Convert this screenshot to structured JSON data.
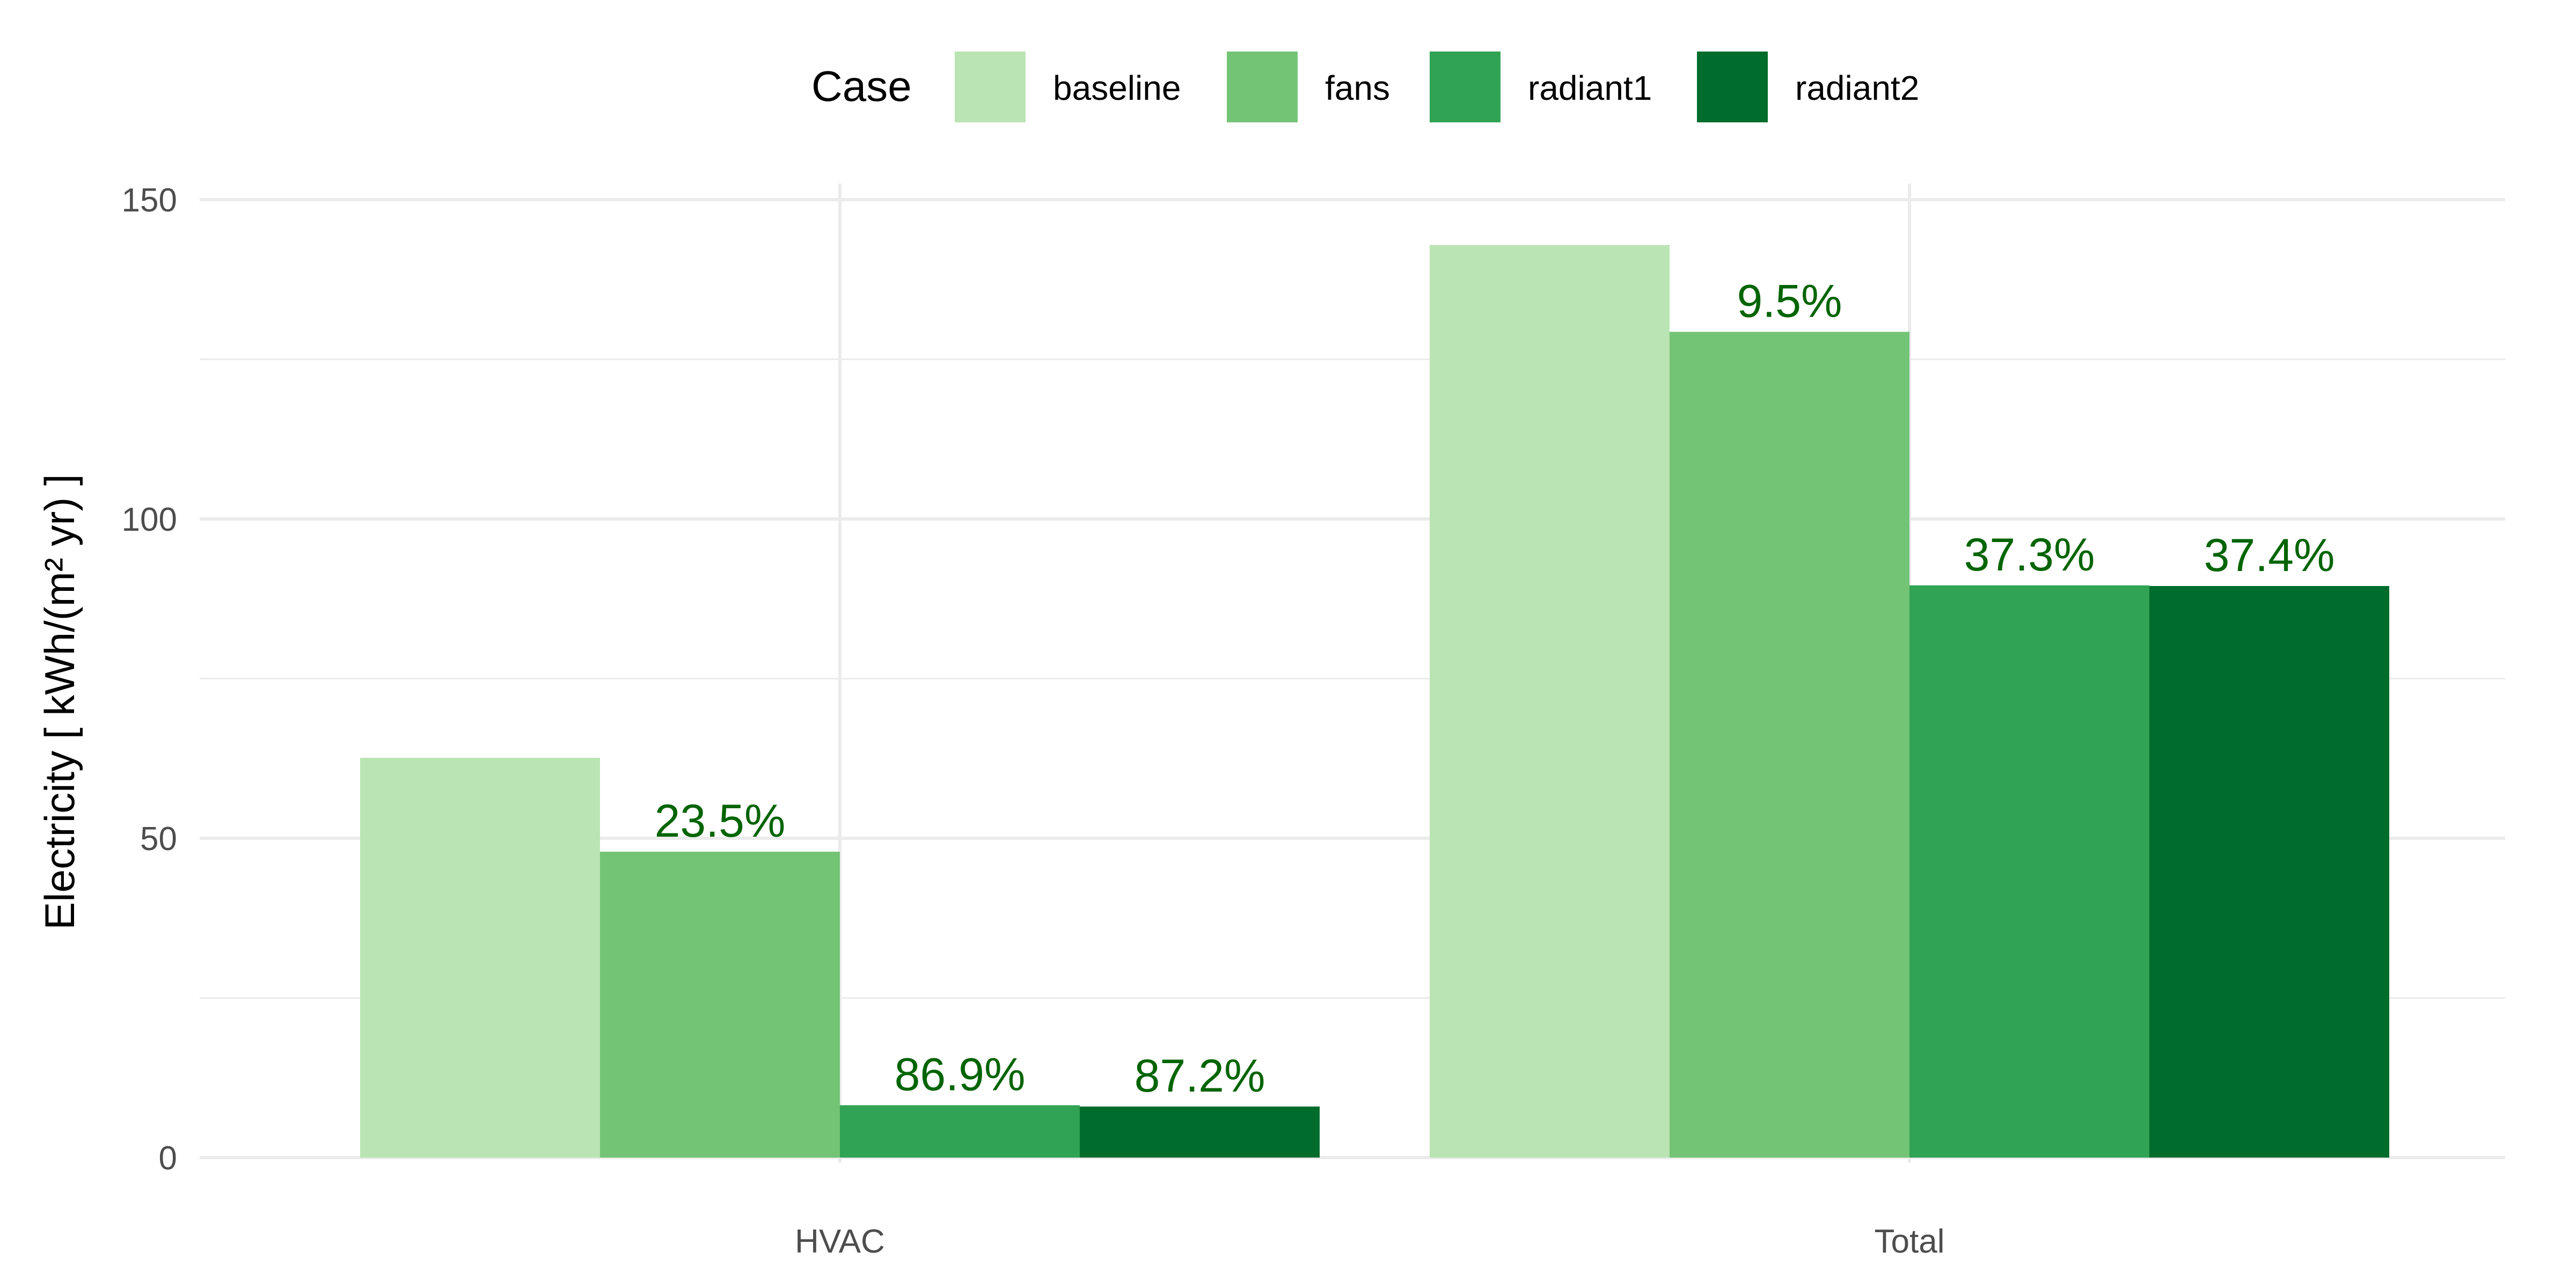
{
  "chart_data": {
    "type": "bar",
    "categories": [
      "HVAC",
      "Total"
    ],
    "series": [
      {
        "name": "baseline",
        "values": [
          62.6,
          142.9
        ],
        "labels": [
          "",
          ""
        ]
      },
      {
        "name": "fans",
        "values": [
          47.9,
          129.3
        ],
        "labels": [
          "23.5%",
          "9.5%"
        ]
      },
      {
        "name": "radiant1",
        "values": [
          8.2,
          89.6
        ],
        "labels": [
          "86.9%",
          "37.3%"
        ]
      },
      {
        "name": "radiant2",
        "values": [
          8.0,
          89.5
        ],
        "labels": [
          "87.2%",
          "37.4%"
        ]
      }
    ],
    "title": "",
    "xlabel": "",
    "ylabel": "Electricity [ kWh/(m² yr) ]",
    "ylim": [
      0,
      150
    ],
    "yticks": [
      0,
      50,
      100,
      150
    ],
    "legend": {
      "title": "Case",
      "position": "top"
    },
    "grid": true
  },
  "colors": {
    "series": [
      "#bae4b3",
      "#74c476",
      "#31a354",
      "#006d2c"
    ],
    "data_label": "#006400",
    "grid": "#ebebeb"
  }
}
